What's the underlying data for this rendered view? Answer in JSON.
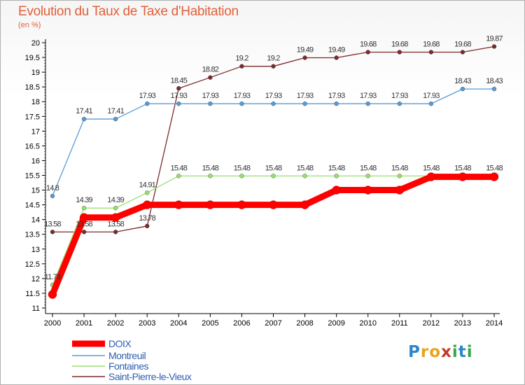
{
  "title": "Evolution du Taux de Taxe d'Habitation",
  "unit": "(en %)",
  "logo_text": "Proxiti",
  "chart_data": {
    "type": "line",
    "title": "Evolution du Taux de Taxe d'Habitation",
    "ylabel": "(en %)",
    "xlabel": "",
    "x": [
      2000,
      2001,
      2002,
      2003,
      2004,
      2005,
      2006,
      2007,
      2008,
      2009,
      2010,
      2011,
      2012,
      2013,
      2014
    ],
    "ylim": [
      11,
      20
    ],
    "yticks": [
      "11",
      "11.5",
      "12",
      "12.5",
      "13",
      "13.5",
      "14",
      "14.5",
      "15",
      "15.5",
      "16",
      "16.5",
      "17",
      "17.5",
      "18",
      "18.5",
      "19",
      "19.5",
      "20"
    ],
    "grid": false,
    "legend_position": "bottom-left",
    "series": [
      {
        "name": "DOIX",
        "color": "#ff0000",
        "labels": [],
        "values": [
          11.46,
          14.07,
          14.07,
          14.5,
          14.5,
          14.5,
          14.5,
          14.5,
          14.5,
          15,
          15,
          15,
          15.45,
          15.45,
          15.45
        ]
      },
      {
        "name": "Montreuil",
        "color": "#5a9bd4",
        "labels": [
          "14.8",
          "17.41",
          "17.41",
          "17.93",
          "17.93",
          "17.93",
          "17.93",
          "17.93",
          "17.93",
          "17.93",
          "17.93",
          "17.93",
          "17.93",
          "18.43",
          "18.43"
        ],
        "values": [
          14.8,
          17.41,
          17.41,
          17.93,
          17.93,
          17.93,
          17.93,
          17.93,
          17.93,
          17.93,
          17.93,
          17.93,
          17.93,
          18.43,
          18.43
        ]
      },
      {
        "name": "Fontaines",
        "color": "#99e06a",
        "labels": [
          "11.78",
          "14.39",
          "14.39",
          "14.91",
          "15.48",
          "15.48",
          "15.48",
          "15.48",
          "15.48",
          "15.48",
          "15.48",
          "15.48",
          "15.48",
          "15.48",
          "15.48"
        ],
        "values": [
          11.78,
          14.39,
          14.39,
          14.91,
          15.48,
          15.48,
          15.48,
          15.48,
          15.48,
          15.48,
          15.48,
          15.48,
          15.48,
          15.48,
          15.48
        ]
      },
      {
        "name": "Saint-Pierre-le-Vieux",
        "color": "#7b2a2a",
        "labels": [
          "13.58",
          "13.58",
          "13.58",
          "13.78",
          "18.45",
          "18.82",
          "19.2",
          "19.2",
          "19.49",
          "19.49",
          "19.68",
          "19.68",
          "19.68",
          "19.68",
          "19.87"
        ],
        "values": [
          13.58,
          13.58,
          13.58,
          13.78,
          18.45,
          18.82,
          19.2,
          19.2,
          19.49,
          19.49,
          19.68,
          19.68,
          19.68,
          19.68,
          19.87
        ]
      }
    ]
  }
}
